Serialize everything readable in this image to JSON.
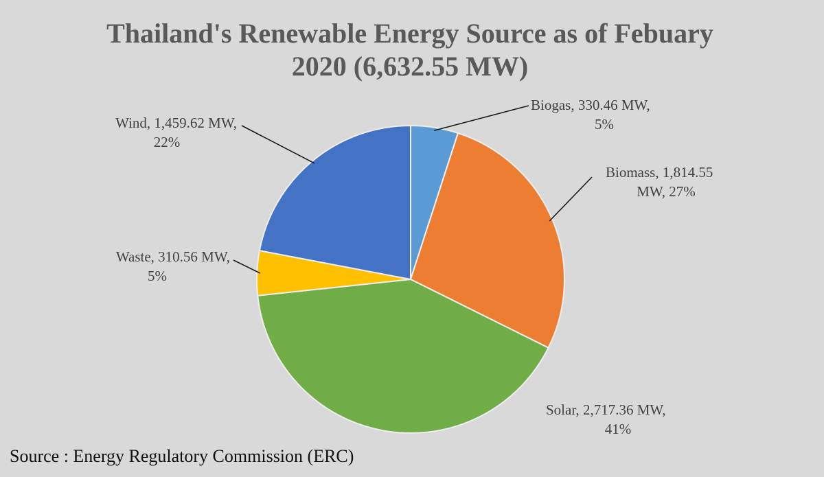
{
  "chart_data": {
    "type": "pie",
    "title": "Thailand's Renewable Energy Source as of Febuary 2020 (6,632.55 MW)",
    "title_lines": [
      "Thailand's Renewable Energy Source as of Febuary",
      "2020 (6,632.55 MW)"
    ],
    "slices": [
      {
        "name": "Biogas",
        "value": 330.46,
        "percent": 5,
        "color": "#5b9bd5",
        "label_lines": [
          "Biogas, 330.46 MW,",
          "5%"
        ]
      },
      {
        "name": "Biomass",
        "value": 1814.55,
        "percent": 27,
        "color": "#ed7d31",
        "label_lines": [
          "Biomass, 1,814.55",
          "MW, 27%"
        ]
      },
      {
        "name": "Solar",
        "value": 2717.36,
        "percent": 41,
        "color": "#70ad47",
        "label_lines": [
          "Solar, 2,717.36 MW,",
          "41%"
        ]
      },
      {
        "name": "Waste",
        "value": 310.56,
        "percent": 5,
        "color": "#ffc000",
        "label_lines": [
          "Waste, 310.56 MW,",
          "5%"
        ]
      },
      {
        "name": "Wind",
        "value": 1459.62,
        "percent": 22,
        "color": "#4472c4",
        "label_lines": [
          "Wind, 1,459.62 MW,",
          "22%"
        ]
      }
    ],
    "start_angle_deg": 0,
    "direction": "clockwise"
  },
  "source": "Source : Energy Regulatory Commission (ERC)"
}
